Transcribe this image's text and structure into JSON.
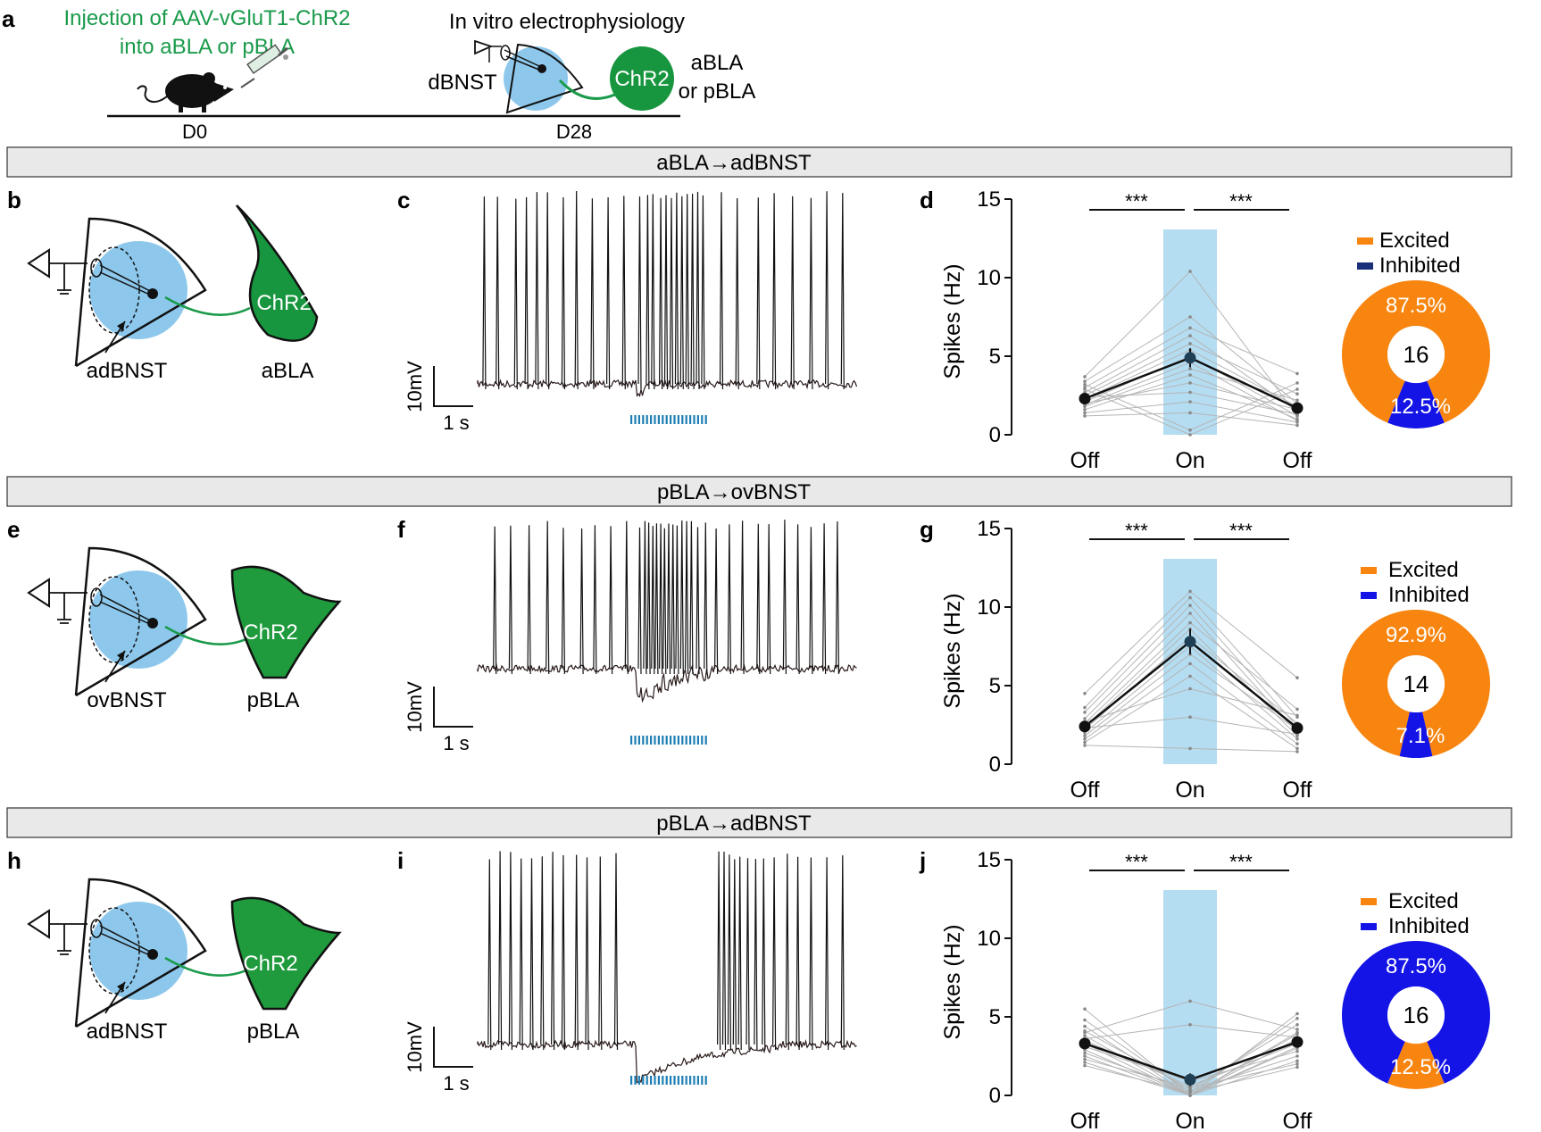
{
  "panel_a": {
    "letter": "a",
    "injection_line1": "Injection of AAV-vGluT1-ChR2",
    "injection_line2": "into aBLA or pBLA",
    "ephys_title": "In vitro electrophysiology",
    "dbnst": "dBNST",
    "chr2": "ChR2",
    "target_line1": "aBLA",
    "target_line2": "or pBLA",
    "day0": "D0",
    "day28": "D28"
  },
  "sections": [
    {
      "banner": "aBLA→adBNST",
      "schema_letter": "b",
      "trace_letter": "c",
      "plot_letter": "d",
      "bnst_label": "adBNST",
      "bla_label": "aBLA",
      "chr2": "ChR2"
    },
    {
      "banner": "pBLA→ovBNST",
      "schema_letter": "e",
      "trace_letter": "f",
      "plot_letter": "g",
      "bnst_label": "ovBNST",
      "bla_label": "pBLA",
      "chr2": "ChR2"
    },
    {
      "banner": "pBLA→adBNST",
      "schema_letter": "h",
      "trace_letter": "i",
      "plot_letter": "j",
      "bnst_label": "adBNST",
      "bla_label": "pBLA",
      "chr2": "ChR2"
    }
  ],
  "scale_bar": {
    "voltage": "10mV",
    "time": "1 s"
  },
  "colors": {
    "blue_region": "#7fc3ea",
    "green": "#1a9a4a",
    "orange": "#f7850f",
    "inhibited_blue": "#1414e6",
    "light_stim": "#1f7fb5"
  },
  "chart_data": [
    {
      "type": "line",
      "panel": "d",
      "x": [
        "Off",
        "On",
        "Off"
      ],
      "ylabel": "Spikes (Hz)",
      "ylim": [
        0,
        15
      ],
      "yticks": [
        0,
        5,
        10,
        15
      ],
      "mean": [
        2.3,
        4.9,
        1.7
      ],
      "sem": [
        0.3,
        0.6,
        0.2
      ],
      "significance": [
        "***",
        "***"
      ],
      "individuals": [
        [
          3.7,
          10.4,
          1.2
        ],
        [
          3.4,
          7.5,
          2.0
        ],
        [
          3.0,
          6.8,
          3.9
        ],
        [
          2.7,
          6.3,
          1.5
        ],
        [
          2.5,
          5.8,
          2.6
        ],
        [
          2.3,
          5.4,
          1.8
        ],
        [
          2.1,
          5.0,
          1.2
        ],
        [
          1.9,
          4.6,
          0.9
        ],
        [
          1.8,
          4.2,
          2.2
        ],
        [
          1.6,
          3.8,
          1.0
        ],
        [
          2.0,
          3.3,
          1.6
        ],
        [
          2.4,
          2.7,
          1.3
        ],
        [
          1.4,
          2.1,
          0.8
        ],
        [
          1.2,
          1.4,
          0.6
        ],
        [
          3.2,
          0.3,
          3.3
        ],
        [
          2.9,
          0.0,
          2.9
        ]
      ],
      "pie": {
        "total": "16",
        "slices": [
          {
            "name": "Excited",
            "value": 87.5,
            "label": "87.5%"
          },
          {
            "name": "Inhibited",
            "value": 12.5,
            "label": "12.5%"
          }
        ]
      }
    },
    {
      "type": "line",
      "panel": "g",
      "x": [
        "Off",
        "On",
        "Off"
      ],
      "ylabel": "Spikes (Hz)",
      "ylim": [
        0,
        15
      ],
      "yticks": [
        0,
        5,
        10,
        15
      ],
      "mean": [
        2.4,
        7.8,
        2.3
      ],
      "sem": [
        0.3,
        0.8,
        0.3
      ],
      "significance": [
        "***",
        "***"
      ],
      "individuals": [
        [
          4.5,
          11.0,
          5.5
        ],
        [
          3.6,
          10.6,
          3.0
        ],
        [
          3.3,
          10.1,
          2.4
        ],
        [
          2.9,
          9.6,
          2.0
        ],
        [
          2.6,
          9.0,
          3.5
        ],
        [
          2.4,
          8.6,
          1.8
        ],
        [
          2.2,
          8.1,
          2.6
        ],
        [
          2.0,
          7.5,
          1.6
        ],
        [
          1.8,
          7.0,
          2.2
        ],
        [
          1.6,
          6.4,
          1.3
        ],
        [
          1.4,
          5.6,
          1.0
        ],
        [
          2.7,
          4.8,
          3.1
        ],
        [
          2.3,
          3.0,
          1.9
        ],
        [
          1.2,
          1.0,
          0.8
        ]
      ],
      "pie": {
        "total": "14",
        "slices": [
          {
            "name": "Excited",
            "value": 92.9,
            "label": "92.9%"
          },
          {
            "name": "Inhibited",
            "value": 7.1,
            "label": "7.1%"
          }
        ]
      }
    },
    {
      "type": "line",
      "panel": "j",
      "x": [
        "Off",
        "On",
        "Off"
      ],
      "ylabel": "Spikes (Hz)",
      "ylim": [
        0,
        15
      ],
      "yticks": [
        0,
        5,
        10,
        15
      ],
      "mean": [
        3.3,
        1.0,
        3.4
      ],
      "sem": [
        0.3,
        0.4,
        0.3
      ],
      "significance": [
        "***",
        "***"
      ],
      "individuals": [
        [
          5.5,
          0.0,
          5.2
        ],
        [
          4.8,
          0.2,
          4.9
        ],
        [
          4.4,
          0.0,
          4.0
        ],
        [
          4.1,
          0.4,
          4.5
        ],
        [
          3.8,
          0.0,
          3.6
        ],
        [
          3.5,
          0.6,
          3.3
        ],
        [
          3.3,
          0.0,
          3.0
        ],
        [
          3.1,
          0.9,
          2.8
        ],
        [
          2.9,
          0.0,
          3.9
        ],
        [
          2.7,
          0.3,
          2.5
        ],
        [
          2.5,
          0.0,
          2.2
        ],
        [
          2.3,
          0.5,
          2.0
        ],
        [
          2.1,
          0.0,
          3.1
        ],
        [
          1.9,
          0.2,
          1.8
        ],
        [
          4.0,
          6.0,
          4.2
        ],
        [
          3.6,
          4.5,
          3.7
        ]
      ],
      "pie": {
        "total": "16",
        "slices": [
          {
            "name": "Inhibited",
            "value": 87.5,
            "label": "87.5%"
          },
          {
            "name": "Excited",
            "value": 12.5,
            "label": "12.5%"
          }
        ]
      }
    }
  ],
  "legend": [
    {
      "name": "Excited",
      "color": "#f7850f"
    },
    {
      "name": "Inhibited",
      "color": "#1414e6"
    }
  ]
}
